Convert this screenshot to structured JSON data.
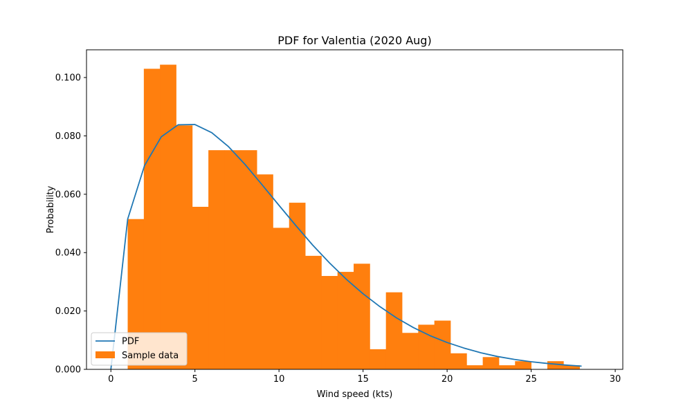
{
  "chart_data": {
    "type": "bar",
    "title": "PDF for Valentia (2020 Aug)",
    "xlabel": "Wind speed (kts)",
    "ylabel": "Probability",
    "xlim": [
      -1.45,
      30.45
    ],
    "ylim": [
      0,
      0.1095
    ],
    "x_ticks": [
      0,
      5,
      10,
      15,
      20,
      25,
      30
    ],
    "x_tick_labels": [
      "0",
      "5",
      "10",
      "15",
      "20",
      "25",
      "30"
    ],
    "y_ticks": [
      0,
      0.02,
      0.04,
      0.06,
      0.08,
      0.1
    ],
    "y_tick_labels": [
      "0.000",
      "0.020",
      "0.040",
      "0.060",
      "0.080",
      "0.100"
    ],
    "grid": false,
    "legend_position": "lower-left",
    "series": [
      {
        "name": "PDF",
        "type": "line",
        "color": "#1f77b4",
        "x": [
          0,
          1,
          2,
          3,
          4,
          5,
          6,
          7,
          8,
          9,
          10,
          11,
          12,
          13,
          14,
          15,
          16,
          17,
          18,
          19,
          20,
          21,
          22,
          23,
          24,
          25,
          26,
          27,
          28
        ],
        "y": [
          0.0,
          0.0515,
          0.0698,
          0.0797,
          0.0838,
          0.0839,
          0.0811,
          0.0763,
          0.0701,
          0.0632,
          0.0562,
          0.0493,
          0.0426,
          0.0365,
          0.0309,
          0.0259,
          0.0215,
          0.0176,
          0.0143,
          0.0115,
          0.0092,
          0.0073,
          0.0057,
          0.0044,
          0.0034,
          0.0026,
          0.002,
          0.0015,
          0.0011
        ]
      },
      {
        "name": "Sample data",
        "type": "bar",
        "color": "#ff7f0e",
        "bin_edges": [
          1,
          1.96,
          2.92,
          3.88,
          4.84,
          5.8,
          6.76,
          7.72,
          8.68,
          9.64,
          10.6,
          11.56,
          12.52,
          13.48,
          14.44,
          15.4,
          16.36,
          17.32,
          18.28,
          19.24,
          20.2,
          21.16,
          22.12,
          23.08,
          24.04,
          25.0,
          25.96,
          26.92,
          27.88,
          28.84
        ],
        "values": [
          0.0515,
          0.103,
          0.1044,
          0.0836,
          0.0557,
          0.0751,
          0.0751,
          0.0751,
          0.0668,
          0.0485,
          0.0571,
          0.0389,
          0.032,
          0.0334,
          0.0362,
          0.0069,
          0.0264,
          0.0125,
          0.0153,
          0.0167,
          0.0055,
          0.0014,
          0.0042,
          0.0014,
          0.0028,
          0.0,
          0.0028,
          0.0014,
          0.0
        ]
      }
    ]
  }
}
